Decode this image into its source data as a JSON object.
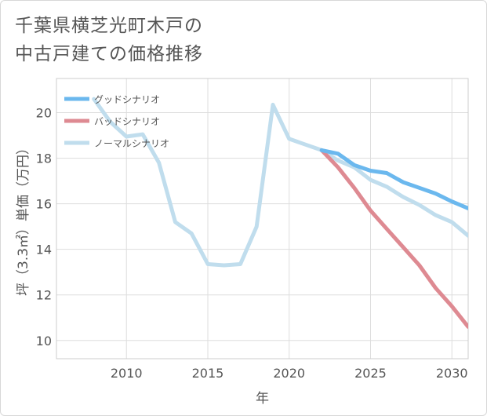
{
  "title_line1": "千葉県横芝光町木戸の",
  "title_line2": "中古戸建ての価格推移",
  "chart_data": {
    "type": "line",
    "xlabel": "年",
    "ylabel": "坪（3.3㎡）単価（万円）",
    "xlim": [
      2005.7,
      2031.0
    ],
    "ylim": [
      9.2,
      21.5
    ],
    "xticks": [
      2010,
      2015,
      2020,
      2025,
      2030
    ],
    "yticks": [
      10,
      12,
      14,
      16,
      18,
      20
    ],
    "x_tick_labels": [
      "2010",
      "2015",
      "2020",
      "2025",
      "2030"
    ],
    "y_tick_labels": [
      "10",
      "12",
      "14",
      "16",
      "18",
      "20"
    ],
    "grid": true,
    "legend_position": "top-left",
    "series": [
      {
        "name": "グッドシナリオ",
        "color": "#6bb8ee",
        "x": [
          2022,
          2023,
          2024,
          2025,
          2026,
          2027,
          2028,
          2029,
          2030,
          2031
        ],
        "y": [
          18.35,
          18.2,
          17.7,
          17.45,
          17.35,
          16.95,
          16.7,
          16.45,
          16.1,
          15.8
        ]
      },
      {
        "name": "バッドシナリオ",
        "color": "#de8a92",
        "x": [
          2022,
          2023,
          2024,
          2025,
          2026,
          2027,
          2028,
          2029,
          2030,
          2031
        ],
        "y": [
          18.35,
          17.6,
          16.7,
          15.7,
          14.9,
          14.1,
          13.3,
          12.3,
          11.5,
          10.6
        ]
      },
      {
        "name": "ノーマルシナリオ",
        "color": "#c0dded",
        "x": [
          2008,
          2009,
          2010,
          2011,
          2012,
          2013,
          2014,
          2015,
          2016,
          2017,
          2018,
          2019,
          2020,
          2021,
          2022,
          2023,
          2024,
          2025,
          2026,
          2027,
          2028,
          2029,
          2030,
          2031
        ],
        "y": [
          20.6,
          19.6,
          18.95,
          19.05,
          17.8,
          15.2,
          14.7,
          13.35,
          13.3,
          13.35,
          15.0,
          20.35,
          18.85,
          18.6,
          18.35,
          17.9,
          17.6,
          17.05,
          16.75,
          16.3,
          15.95,
          15.5,
          15.2,
          14.6
        ]
      }
    ]
  }
}
